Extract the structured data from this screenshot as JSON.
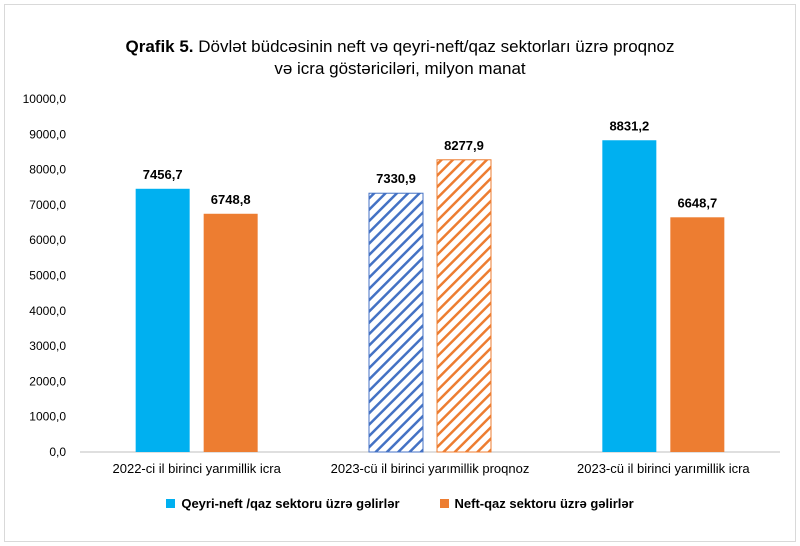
{
  "chart_data": {
    "type": "bar",
    "title_prefix": "Qrafik 5.",
    "title_line1": "Dövlət büdcəsinin neft və qeyri-neft/qaz sektorları üzrə proqnoz",
    "title_line2": "və icra göstəriciləri, milyon manat",
    "categories": [
      "2022-ci il birinci yarımillik icra",
      "2023-cü il birinci yarımillik proqnoz",
      "2023-cü il birinci yarımillik icra"
    ],
    "series": [
      {
        "name": "Qeyri-neft /qaz sektoru üzrə gəlirlər",
        "color": "#00B0F0",
        "hatch_color": "#4472C4",
        "values": [
          7456.7,
          7330.9,
          8831.2
        ],
        "labels": [
          "7456,7",
          "7330,9",
          "8831,2"
        ]
      },
      {
        "name": "Neft-qaz sektoru üzrə gəlirlər",
        "color": "#ED7D31",
        "hatch_color": "#ED7D31",
        "values": [
          6748.8,
          8277.9,
          6648.7
        ],
        "labels": [
          "6748,8",
          "8277,9",
          "6648,7"
        ]
      }
    ],
    "hatched_categories": [
      1
    ],
    "ylim": [
      0,
      10000
    ],
    "yticks": [
      "0,0",
      "1000,0",
      "2000,0",
      "3000,0",
      "4000,0",
      "5000,0",
      "6000,0",
      "7000,0",
      "8000,0",
      "9000,0",
      "10000,0"
    ],
    "grid": false,
    "legend_position": "bottom"
  }
}
